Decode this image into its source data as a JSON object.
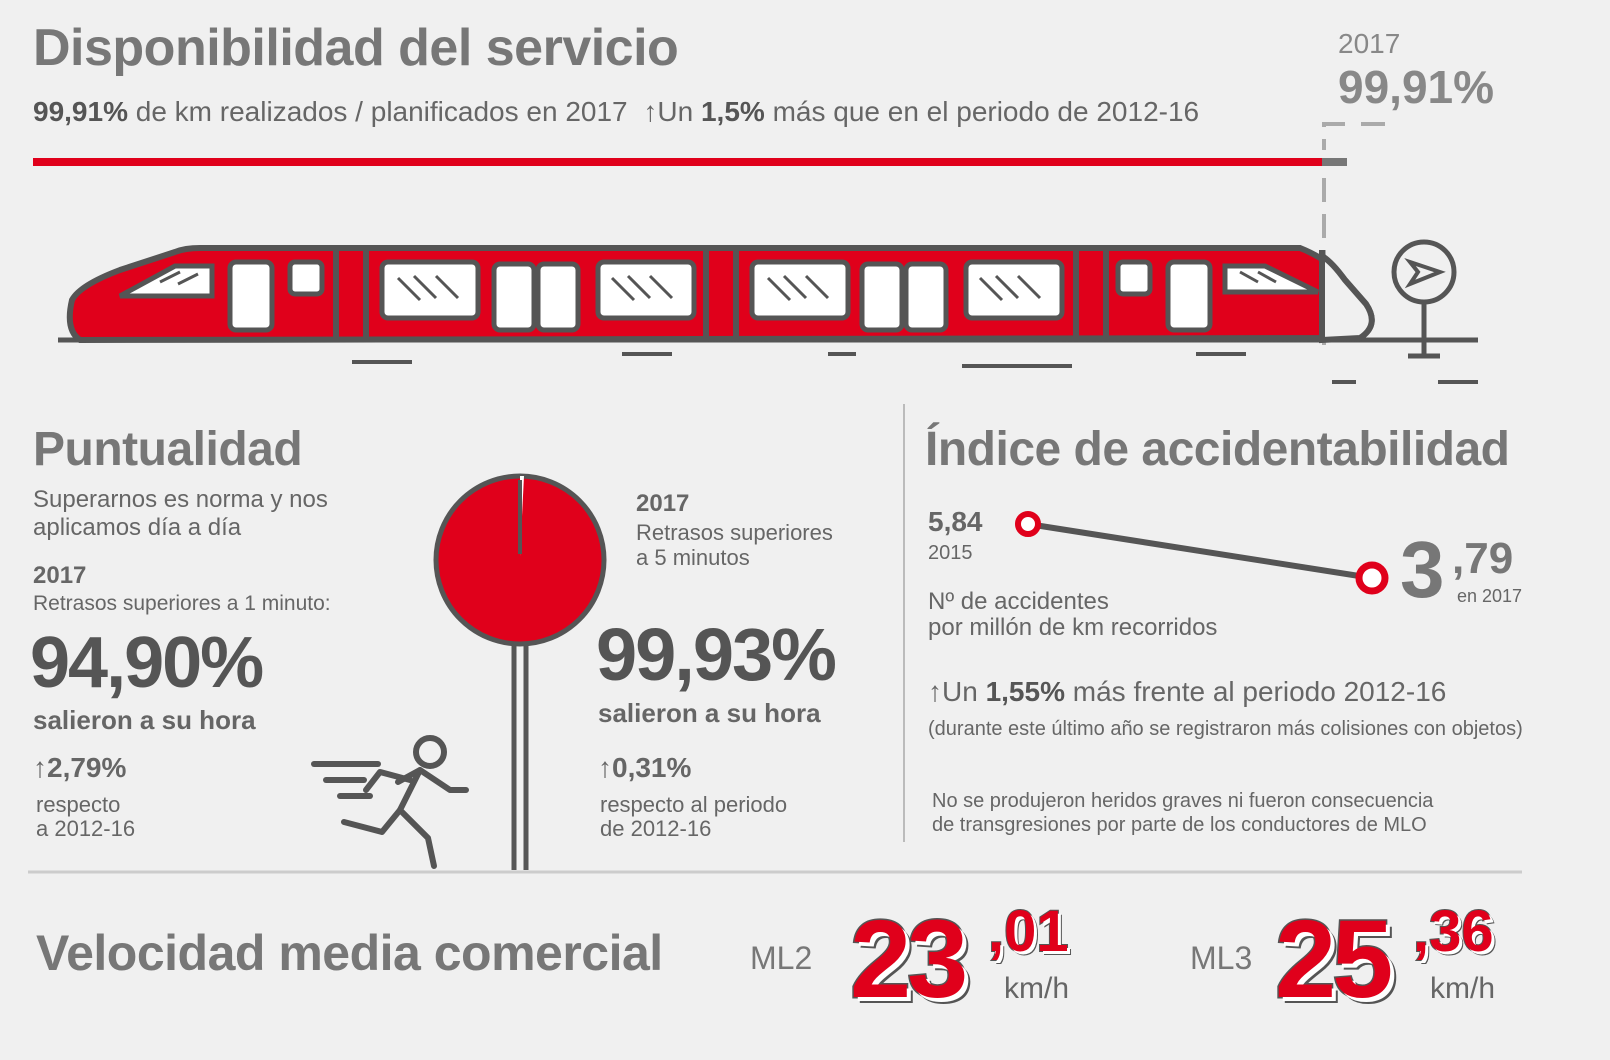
{
  "availability": {
    "title": "Disponibilidad del servicio",
    "value": "99,91%",
    "desc": "de km realizados / planificados en 2017",
    "arrow": "↑",
    "up_prefix": "Un",
    "up_value": "1,5%",
    "up_suffix": "más que en el periodo de 2012-16",
    "year": "2017",
    "year_value": "99,91%"
  },
  "punctuality": {
    "title": "Puntualidad",
    "subtitle_line1": "Superarnos es norma y nos",
    "subtitle_line2": "aplicamos día a día",
    "left": {
      "year": "2017",
      "label": "Retrasos superiores a 1 minuto:",
      "value": "94,90%",
      "caption": "salieron a su hora",
      "arrow": "↑",
      "change": "2,79%",
      "change_line1": "respecto",
      "change_line2": "a 2012-16"
    },
    "right": {
      "year": "2017",
      "label_line1": "Retrasos superiores",
      "label_line2": "a 5 minutos",
      "value": "99,93%",
      "caption": "salieron a su hora",
      "arrow": "↑",
      "change": "0,31%",
      "change_line1": "respecto al periodo",
      "change_line2": "de 2012-16"
    }
  },
  "accidents": {
    "title": "Índice de accidentabilidad",
    "start_value": "5,84",
    "start_year": "2015",
    "end_int": "3",
    "end_dec": ",79",
    "end_label": "en 2017",
    "unit_line1": "Nº de accidentes",
    "unit_line2": "por millón de km recorridos",
    "arrow": "↑",
    "up_prefix": "Un",
    "up_value": "1,55%",
    "up_suffix": "más frente al periodo 2012-16",
    "note": "(durante este último año se registraron más colisiones con objetos)",
    "footnote_line1": "No se produjeron heridos graves ni fueron consecuencia",
    "footnote_line2": "de transgresiones por parte de los conductores de MLO"
  },
  "speed": {
    "title": "Velocidad media comercial",
    "ml2_label": "ML2",
    "ml2_int": "23",
    "ml2_dec": ",01",
    "ml3_label": "ML3",
    "ml3_int": "25",
    "ml3_dec": ",36",
    "unit": "km/h"
  },
  "colors": {
    "red": "#e0001b",
    "gray": "#555555",
    "bg": "#f0f0f0"
  },
  "icons": [
    "train-icon",
    "signal-arrow-icon",
    "clock-signal-icon",
    "runner-icon"
  ]
}
